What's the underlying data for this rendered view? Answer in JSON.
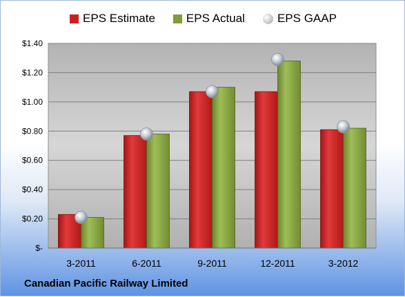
{
  "chart_data": {
    "type": "bar",
    "categories": [
      "3-2011",
      "6-2011",
      "9-2011",
      "12-2011",
      "3-2012"
    ],
    "series": [
      {
        "name": "EPS Estimate",
        "values": [
          0.23,
          0.77,
          1.07,
          1.07,
          0.81
        ],
        "color": "#cc1f1f"
      },
      {
        "name": "EPS Actual",
        "values": [
          0.21,
          0.78,
          1.1,
          1.28,
          0.82
        ],
        "color": "#7f9d3a"
      },
      {
        "name": "EPS GAAP",
        "values": [
          0.21,
          0.78,
          1.07,
          1.29,
          0.83
        ],
        "color": "#b8bec8",
        "marker": "sphere"
      }
    ],
    "yticks": [
      "$-",
      "$0.20",
      "$0.40",
      "$0.60",
      "$0.80",
      "$1.00",
      "$1.20",
      "$1.40"
    ],
    "ylim": [
      0,
      1.4
    ],
    "grid": true,
    "legend": "top"
  },
  "footer": {
    "company": "Canadian Pacific Railway Limited"
  },
  "colors": {
    "plot_background": "#c0c0c0",
    "gridline": "#7f7f7f"
  }
}
